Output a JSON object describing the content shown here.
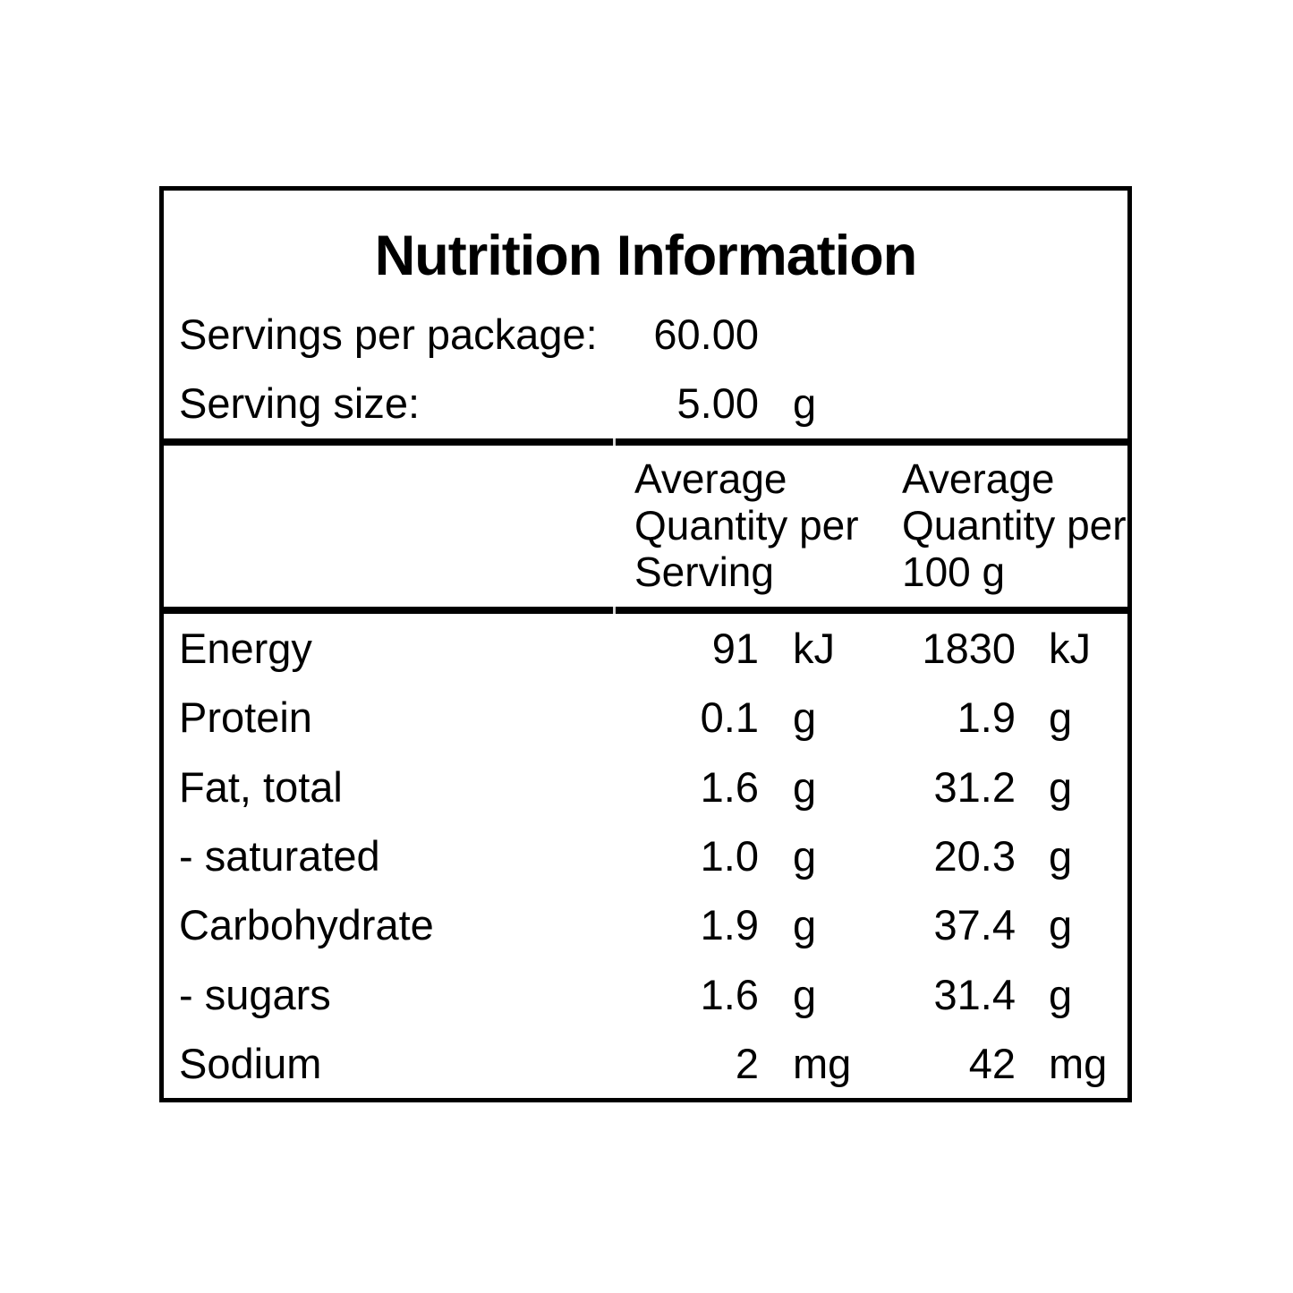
{
  "label": {
    "title": "Nutrition Information",
    "servings_per_package": {
      "label": "Servings per package:",
      "value": "60.00"
    },
    "serving_size": {
      "label": "Serving size:",
      "value": "5.00",
      "unit": "g"
    },
    "column_headers": {
      "per_serving": "Average\nQuantity per\nServing",
      "per_100g": "Average\nQuantity per\n100 g"
    },
    "rows": [
      {
        "label": "Energy",
        "serving_value": "91",
        "serving_unit": "kJ",
        "per100_value": "1830",
        "per100_unit": "kJ"
      },
      {
        "label": "Protein",
        "serving_value": "0.1",
        "serving_unit": "g",
        "per100_value": "1.9",
        "per100_unit": "g"
      },
      {
        "label": "Fat, total",
        "serving_value": "1.6",
        "serving_unit": "g",
        "per100_value": "31.2",
        "per100_unit": "g"
      },
      {
        "label": "- saturated",
        "serving_value": "1.0",
        "serving_unit": "g",
        "per100_value": "20.3",
        "per100_unit": "g"
      },
      {
        "label": "Carbohydrate",
        "serving_value": "1.9",
        "serving_unit": "g",
        "per100_value": "37.4",
        "per100_unit": "g"
      },
      {
        "label": "- sugars",
        "serving_value": "1.6",
        "serving_unit": "g",
        "per100_value": "31.4",
        "per100_unit": "g"
      },
      {
        "label": "Sodium",
        "serving_value": "2",
        "serving_unit": "mg",
        "per100_value": "42",
        "per100_unit": "mg"
      }
    ],
    "colors": {
      "text": "#000000",
      "border": "#000000",
      "background": "#ffffff"
    }
  }
}
